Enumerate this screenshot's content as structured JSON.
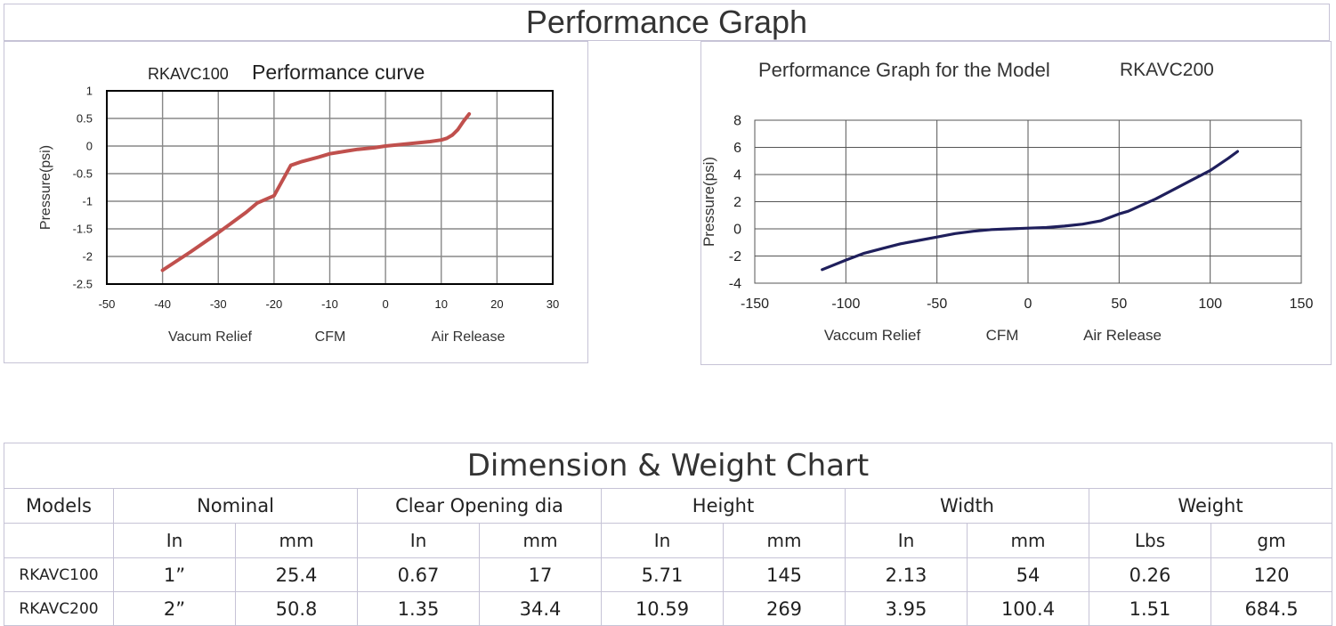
{
  "page_title": "Performance Graph",
  "chart_data": [
    {
      "type": "line",
      "title_prefix": "RKAVC100",
      "title": "Performance curve",
      "ylabel": "Pressure(psi)",
      "xlabel_left": "Vacum Relief",
      "xlabel_center": "CFM",
      "xlabel_right": "Air Release",
      "xlim": [
        -50,
        30
      ],
      "ylim": [
        -2.5,
        1
      ],
      "xticks": [
        -50,
        -40,
        -30,
        -20,
        -10,
        0,
        10,
        20,
        30
      ],
      "yticks": [
        1,
        0.5,
        0,
        -0.5,
        -1,
        -1.5,
        -2,
        -2.5
      ],
      "grid": true,
      "series_color": "#c0504d",
      "x": [
        -40,
        -35,
        -30,
        -25,
        -23,
        -20,
        -17,
        -15,
        -12,
        -10,
        -7,
        -5,
        -2,
        0,
        3,
        5,
        8,
        10,
        11,
        12,
        13,
        14,
        15
      ],
      "y": [
        -2.25,
        -1.92,
        -1.57,
        -1.2,
        -1.03,
        -0.9,
        -0.35,
        -0.28,
        -0.2,
        -0.14,
        -0.09,
        -0.06,
        -0.03,
        0,
        0.03,
        0.05,
        0.08,
        0.11,
        0.14,
        0.2,
        0.3,
        0.45,
        0.58
      ]
    },
    {
      "type": "line",
      "title": "Performance Graph for the Model",
      "title_suffix": "RKAVC200",
      "ylabel": "Pressure(psi)",
      "xlabel_left": "Vaccum Relief",
      "xlabel_center": "CFM",
      "xlabel_right": "Air Release",
      "xlim": [
        -150,
        150
      ],
      "ylim": [
        -4,
        8
      ],
      "xticks": [
        -150,
        -100,
        -50,
        0,
        50,
        100,
        150
      ],
      "yticks": [
        8,
        6,
        4,
        2,
        0,
        -2,
        -4
      ],
      "grid": true,
      "series_color": "#1f1f5c",
      "x": [
        -113,
        -100,
        -90,
        -80,
        -70,
        -60,
        -50,
        -40,
        -30,
        -20,
        -10,
        0,
        10,
        20,
        30,
        40,
        50,
        55,
        60,
        70,
        80,
        90,
        100,
        110,
        115
      ],
      "y": [
        -3.0,
        -2.3,
        -1.8,
        -1.45,
        -1.1,
        -0.85,
        -0.6,
        -0.35,
        -0.18,
        -0.05,
        0.0,
        0.05,
        0.1,
        0.2,
        0.35,
        0.6,
        1.1,
        1.3,
        1.6,
        2.2,
        2.9,
        3.6,
        4.3,
        5.2,
        5.7
      ]
    }
  ],
  "dimension_table": {
    "title": "Dimension & Weight Chart",
    "groups": [
      "Models",
      "Nominal",
      "Clear Opening dia",
      "Height",
      "Width",
      "Weight"
    ],
    "units": [
      "In",
      "mm",
      "In",
      "mm",
      "In",
      "mm",
      "In",
      "mm",
      "Lbs",
      "gm"
    ],
    "rows": [
      {
        "model": "RKAVC100",
        "values": [
          "1”",
          "25.4",
          "0.67",
          "17",
          "5.71",
          "145",
          "2.13",
          "54",
          "0.26",
          "120"
        ]
      },
      {
        "model": "RKAVC200",
        "values": [
          "2”",
          "50.8",
          "1.35",
          "34.4",
          "10.59",
          "269",
          "3.95",
          "100.4",
          "1.51",
          "684.5"
        ]
      }
    ]
  }
}
